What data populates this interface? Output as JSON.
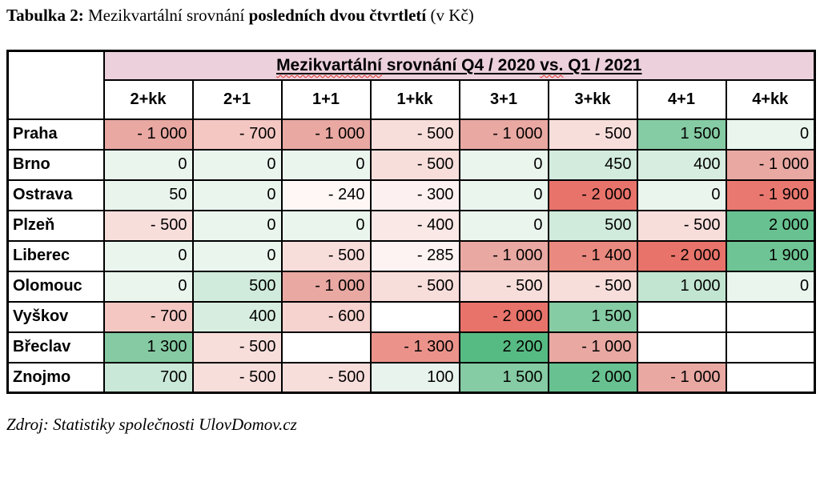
{
  "caption": {
    "prefix": "Tabulka 2:",
    "mid": " Mezikvartální srovnání ",
    "bold": "posledních dvou čtvrtletí",
    "suffix": " (v Kč)"
  },
  "source": "Zdroj: Statistiky společnosti UlovDomov.cz",
  "table": {
    "title": {
      "spell1": "Mezikvartální",
      "mid": " srovnání Q4 / 2020 ",
      "spell2": "vs.",
      "end": " Q1 / 2021",
      "bg": "#ecd0dc"
    },
    "columns": [
      "2+kk",
      "2+1",
      "1+1",
      "1+kk",
      "3+1",
      "3+kk",
      "4+1",
      "4+kk"
    ],
    "rows": [
      {
        "city": "Praha",
        "cells": [
          {
            "t": "- 1 000",
            "bg": "#e9a8a2"
          },
          {
            "t": "- 700",
            "bg": "#f4c7c3"
          },
          {
            "t": "- 1 000",
            "bg": "#e9a8a2"
          },
          {
            "t": "- 500",
            "bg": "#f8dedb"
          },
          {
            "t": "- 1 000",
            "bg": "#e9a8a2"
          },
          {
            "t": "- 500",
            "bg": "#f8dedb"
          },
          {
            "t": "1 500",
            "bg": "#85cba3"
          },
          {
            "t": "0",
            "bg": "#eaf5ee"
          }
        ]
      },
      {
        "city": "Brno",
        "cells": [
          {
            "t": "0",
            "bg": "#eaf5ee"
          },
          {
            "t": "0",
            "bg": "#eaf5ee"
          },
          {
            "t": "0",
            "bg": "#eaf5ee"
          },
          {
            "t": "- 500",
            "bg": "#f8dedb"
          },
          {
            "t": "0",
            "bg": "#eaf5ee"
          },
          {
            "t": "450",
            "bg": "#d2ebdd"
          },
          {
            "t": "400",
            "bg": "#d7ede0"
          },
          {
            "t": "- 1 000",
            "bg": "#e9a8a2"
          }
        ]
      },
      {
        "city": "Ostrava",
        "cells": [
          {
            "t": "50",
            "bg": "#e9f4ed"
          },
          {
            "t": "0",
            "bg": "#eaf5ee"
          },
          {
            "t": "- 240",
            "bg": "#fef7f6"
          },
          {
            "t": "- 300",
            "bg": "#fcf1f0"
          },
          {
            "t": "0",
            "bg": "#eaf5ee"
          },
          {
            "t": "- 2 000",
            "bg": "#e8736a"
          },
          {
            "t": "0",
            "bg": "#eaf5ee"
          },
          {
            "t": "- 1 900",
            "bg": "#e97970"
          }
        ]
      },
      {
        "city": "Plzeň",
        "cells": [
          {
            "t": "- 500",
            "bg": "#f8dedb"
          },
          {
            "t": "0",
            "bg": "#eaf5ee"
          },
          {
            "t": "0",
            "bg": "#eaf5ee"
          },
          {
            "t": "- 400",
            "bg": "#fae8e6"
          },
          {
            "t": "0",
            "bg": "#eaf5ee"
          },
          {
            "t": "500",
            "bg": "#d0eadc"
          },
          {
            "t": "- 500",
            "bg": "#f8dedb"
          },
          {
            "t": "2 000",
            "bg": "#68c190"
          }
        ]
      },
      {
        "city": "Liberec",
        "cells": [
          {
            "t": "0",
            "bg": "#eaf5ee"
          },
          {
            "t": "0",
            "bg": "#eaf5ee"
          },
          {
            "t": "- 500",
            "bg": "#f8dedb"
          },
          {
            "t": "- 285",
            "bg": "#fdf3f2"
          },
          {
            "t": "- 1 000",
            "bg": "#e9a8a2"
          },
          {
            "t": "- 1 400",
            "bg": "#ea897f"
          },
          {
            "t": "- 2 000",
            "bg": "#e8736a"
          },
          {
            "t": "1 900",
            "bg": "#6ec494"
          }
        ]
      },
      {
        "city": "Olomouc",
        "cells": [
          {
            "t": "0",
            "bg": "#eaf5ee"
          },
          {
            "t": "500",
            "bg": "#d0eadc"
          },
          {
            "t": "- 1 000",
            "bg": "#e9a8a2"
          },
          {
            "t": "- 500",
            "bg": "#f8dedb"
          },
          {
            "t": "- 500",
            "bg": "#f8dedb"
          },
          {
            "t": "- 500",
            "bg": "#f8dedb"
          },
          {
            "t": "1 000",
            "bg": "#c2e5d1"
          },
          {
            "t": "0",
            "bg": "#eaf5ee"
          }
        ]
      },
      {
        "city": "Vyškov",
        "cells": [
          {
            "t": "- 700",
            "bg": "#f4c7c3"
          },
          {
            "t": "400",
            "bg": "#d7ede0"
          },
          {
            "t": "- 600",
            "bg": "#f6d3cf"
          },
          {
            "t": "",
            "bg": "#ffffff"
          },
          {
            "t": "- 2 000",
            "bg": "#e8736a"
          },
          {
            "t": "1 500",
            "bg": "#85cba3"
          },
          {
            "t": "",
            "bg": "#ffffff"
          },
          {
            "t": "",
            "bg": "#ffffff"
          }
        ]
      },
      {
        "city": "Břeclav",
        "cells": [
          {
            "t": "1 300",
            "bg": "#85caa2"
          },
          {
            "t": "- 500",
            "bg": "#f8dedb"
          },
          {
            "t": "",
            "bg": "#ffffff"
          },
          {
            "t": "- 1 300",
            "bg": "#eb938a"
          },
          {
            "t": "2 200",
            "bg": "#56bb82"
          },
          {
            "t": "- 1 000",
            "bg": "#e9a8a2"
          },
          {
            "t": "",
            "bg": "#ffffff"
          },
          {
            "t": "",
            "bg": "#ffffff"
          }
        ]
      },
      {
        "city": "Znojmo",
        "cells": [
          {
            "t": "700",
            "bg": "#c9e8d7"
          },
          {
            "t": "- 500",
            "bg": "#f8dedb"
          },
          {
            "t": "- 500",
            "bg": "#f8dedb"
          },
          {
            "t": "100",
            "bg": "#e7f3ec"
          },
          {
            "t": "1 500",
            "bg": "#85cba3"
          },
          {
            "t": "2 000",
            "bg": "#68c190"
          },
          {
            "t": "- 1 000",
            "bg": "#e9a8a2"
          },
          {
            "t": "",
            "bg": "#ffffff"
          }
        ]
      }
    ]
  },
  "chart_data": {
    "type": "heatmap",
    "title": "Mezikvartální srovnání Q4 / 2020 vs. Q1 / 2021",
    "caption": "Tabulka 2: Mezikvartální srovnání posledních dvou čtvrtletí (v Kč)",
    "source": "Zdroj: Statistiky společnosti UlovDomov.cz",
    "unit": "Kč",
    "columns": [
      "2+kk",
      "2+1",
      "1+1",
      "1+kk",
      "3+1",
      "3+kk",
      "4+1",
      "4+kk"
    ],
    "rows": [
      "Praha",
      "Brno",
      "Ostrava",
      "Plzeň",
      "Liberec",
      "Olomouc",
      "Vyškov",
      "Břeclav",
      "Znojmo"
    ],
    "values": [
      [
        -1000,
        -700,
        -1000,
        -500,
        -1000,
        -500,
        1500,
        0
      ],
      [
        0,
        0,
        0,
        -500,
        0,
        450,
        400,
        -1000
      ],
      [
        50,
        0,
        -240,
        -300,
        0,
        -2000,
        0,
        -1900
      ],
      [
        -500,
        0,
        0,
        -400,
        0,
        500,
        -500,
        2000
      ],
      [
        0,
        0,
        -500,
        -285,
        -1000,
        -1400,
        -2000,
        1900
      ],
      [
        0,
        500,
        -1000,
        -500,
        -500,
        -500,
        1000,
        0
      ],
      [
        -700,
        400,
        -600,
        null,
        -2000,
        1500,
        null,
        null
      ],
      [
        1300,
        -500,
        null,
        -1300,
        2200,
        -1000,
        null,
        null
      ],
      [
        700,
        -500,
        -500,
        100,
        1500,
        2000,
        -1000,
        null
      ]
    ],
    "color_scale": {
      "min_negative": "#e8736a",
      "neutral": "#ffffff",
      "max_positive": "#56bb82"
    }
  }
}
